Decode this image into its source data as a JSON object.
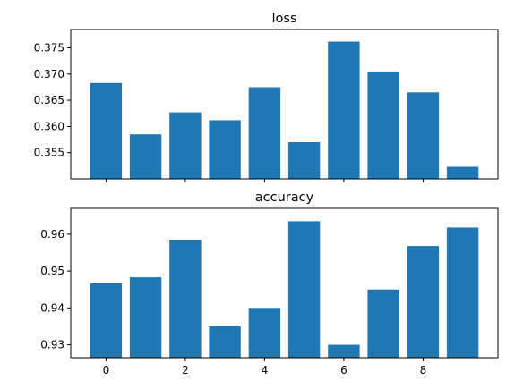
{
  "colors": {
    "bar": "#1f77b4"
  },
  "chart_data": [
    {
      "type": "bar",
      "title": "loss",
      "x": [
        0,
        1,
        2,
        3,
        4,
        5,
        6,
        7,
        8,
        9
      ],
      "values": [
        0.3683,
        0.3585,
        0.3627,
        0.3612,
        0.3675,
        0.357,
        0.3762,
        0.3705,
        0.3665,
        0.3523
      ],
      "ylim": [
        0.35,
        0.3785
      ],
      "yticks": [
        0.355,
        0.36,
        0.365,
        0.37,
        0.375
      ],
      "ytick_labels": [
        "0.355",
        "0.360",
        "0.365",
        "0.370",
        "0.375"
      ],
      "xticks": [
        0,
        2,
        4,
        6,
        8
      ],
      "xtick_labels": [],
      "grid": false
    },
    {
      "type": "bar",
      "title": "accuracy",
      "x": [
        0,
        1,
        2,
        3,
        4,
        5,
        6,
        7,
        8,
        9
      ],
      "values": [
        0.9467,
        0.9483,
        0.9585,
        0.935,
        0.94,
        0.9635,
        0.93,
        0.945,
        0.9568,
        0.9618
      ],
      "ylim": [
        0.9265,
        0.967
      ],
      "yticks": [
        0.93,
        0.94,
        0.95,
        0.96
      ],
      "ytick_labels": [
        "0.93",
        "0.94",
        "0.95",
        "0.96"
      ],
      "xticks": [
        0,
        2,
        4,
        6,
        8
      ],
      "xtick_labels": [
        "0",
        "2",
        "4",
        "6",
        "8"
      ],
      "grid": false
    }
  ]
}
